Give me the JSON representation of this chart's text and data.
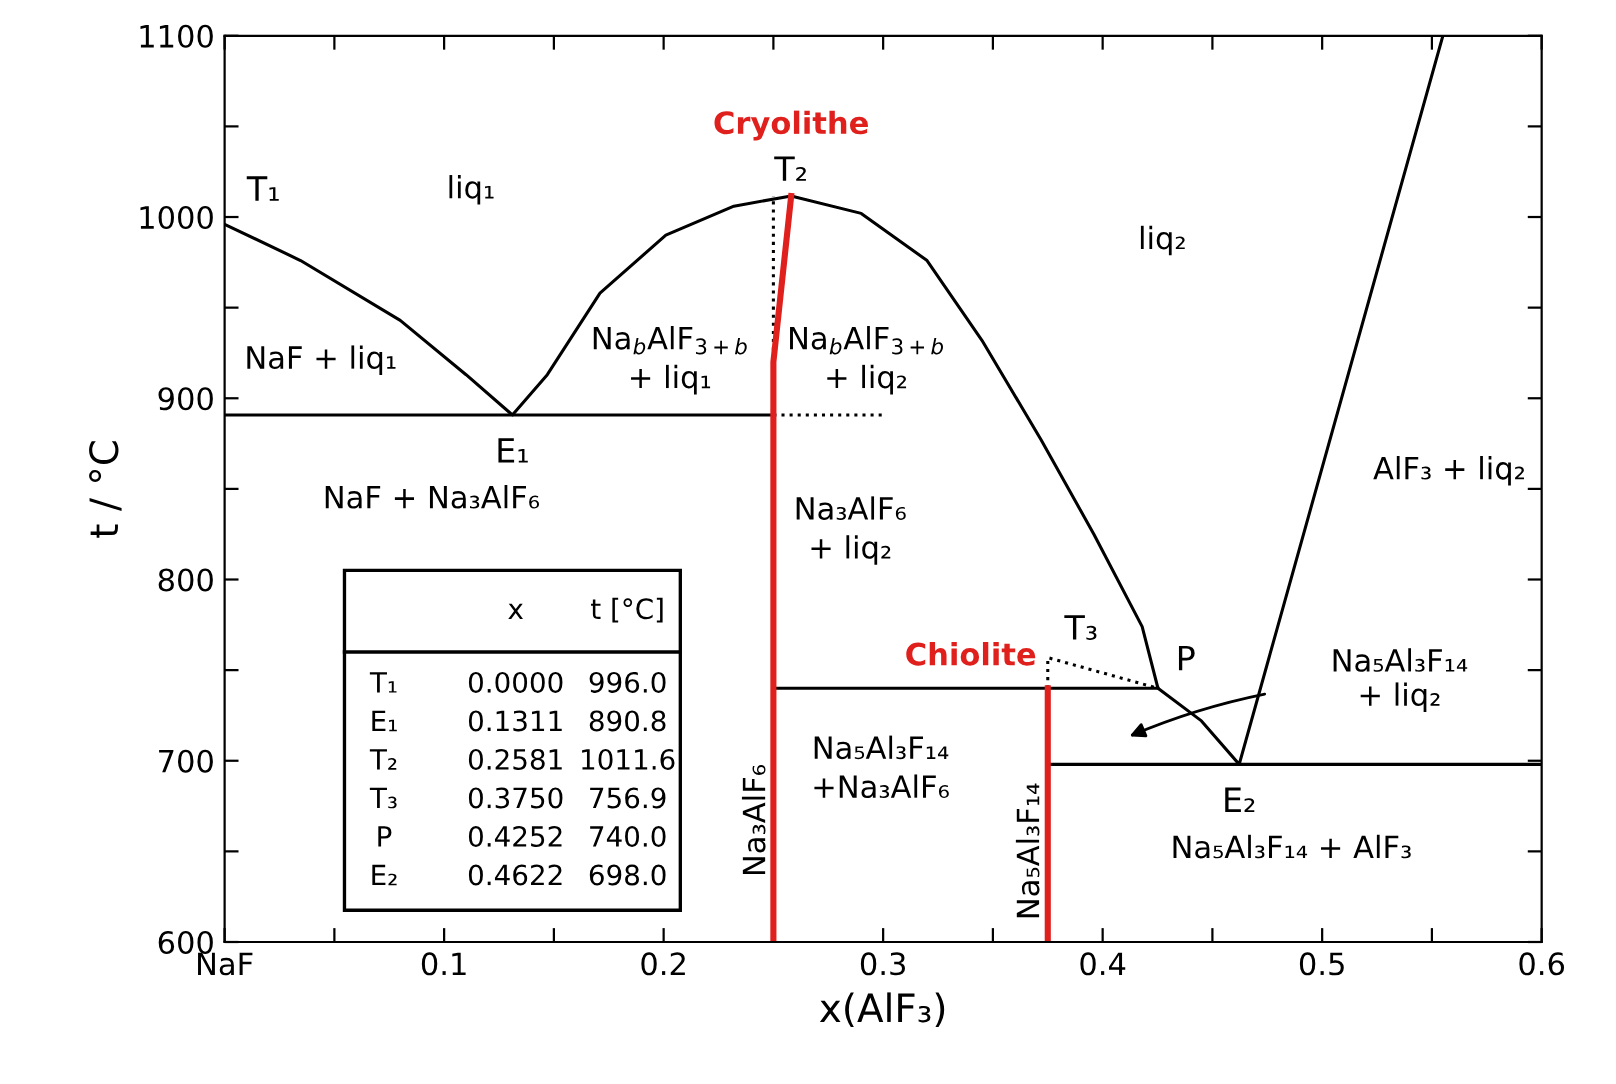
{
  "chart_data": {
    "type": "line",
    "xlabel": "x(AlF₃)",
    "ylabel": "t / °C",
    "xlim": [
      0,
      0.6
    ],
    "ylim": [
      600,
      1100
    ],
    "xticks": [
      {
        "value": 0,
        "label": "NaF"
      },
      {
        "value": 0.05,
        "label": null
      },
      0.1,
      {
        "value": 0.15,
        "label": null
      },
      0.2,
      {
        "value": 0.25,
        "label": null
      },
      0.3,
      {
        "value": 0.35,
        "label": null
      },
      0.4,
      {
        "value": 0.45,
        "label": null
      },
      0.5,
      {
        "value": 0.55,
        "label": null
      },
      0.6
    ],
    "yticks": [
      600,
      {
        "value": 650,
        "label": null
      },
      700,
      {
        "value": 750,
        "label": null
      },
      800,
      {
        "value": 850,
        "label": null
      },
      900,
      {
        "value": 950,
        "label": null
      },
      1000,
      {
        "value": 1050,
        "label": null
      },
      1100
    ],
    "grid": false,
    "series": [
      {
        "color": "#000000",
        "x": [
          0,
          0.0346,
          0.08,
          0.11,
          0.1311,
          0.147,
          0.171,
          0.201,
          0.232,
          0.2581,
          0.29,
          0.32,
          0.345,
          0.372,
          0.396,
          0.418,
          0.4252,
          0.445,
          0.4622,
          0.555
        ],
        "values": [
          996.0,
          976,
          943,
          913,
          890.8,
          913,
          958,
          990,
          1006,
          1011.6,
          1002,
          976,
          932,
          877,
          825,
          774,
          740.0,
          722,
          698.0,
          1100
        ]
      },
      {
        "color": "#000000",
        "x": [
          0,
          0.25
        ],
        "values": [
          890.8,
          890.8
        ]
      },
      {
        "color": "#000000",
        "x": [
          0.25,
          0.4252
        ],
        "values": [
          740.0,
          740.0
        ]
      },
      {
        "color": "#000000",
        "x": [
          0.375,
          0.6
        ],
        "values": [
          698.0,
          698.0
        ]
      },
      {
        "color": "#000000",
        "line_style": "dotted",
        "x": [
          0.25,
          0.3
        ],
        "values": [
          890.8,
          890.8
        ]
      },
      {
        "color": "#000000",
        "line_style": "dotted",
        "x": [
          0.25,
          0.25
        ],
        "values": [
          890.8,
          1011.6
        ]
      },
      {
        "color": "#000000",
        "line_style": "dotted",
        "x": [
          0.375,
          0.375,
          0.4252
        ],
        "values": [
          740.0,
          756.9,
          740.0
        ]
      },
      {
        "name": "Cryolithe",
        "color": "#e0201c",
        "x": [
          0.25,
          0.25,
          0.2581
        ],
        "values": [
          600,
          920,
          1011.6
        ]
      },
      {
        "name": "Chiolite",
        "color": "#e0201c",
        "x": [
          0.375,
          0.375
        ],
        "values": [
          600,
          740.0
        ]
      }
    ],
    "annotations": [
      {
        "text": "T₁",
        "x": 0.0,
        "y": 996.0
      },
      {
        "text": "E₁",
        "x": 0.1311,
        "y": 890.8
      },
      {
        "text": "T₂",
        "x": 0.2581,
        "y": 1011.6
      },
      {
        "text": "T₃",
        "x": 0.375,
        "y": 756.9
      },
      {
        "text": "P",
        "x": 0.4252,
        "y": 740.0
      },
      {
        "text": "E₂",
        "x": 0.4622,
        "y": 698.0
      },
      "Na₅Al₃F₁₄\n+ liq₂",
      "liq₁",
      "liq₂",
      "NaF + liq₁",
      "Na$_{b}$AlF$_{3+b}$\n+ liq₁",
      "Na$_{b}$AlF$_{3+b}$\n+ liq₂",
      "NaF + Na₃AlF₆",
      "Na₃AlF₆\n+ liq₂",
      "AlF₃ + liq₂",
      "Na₅Al₃F₁₄\n+Na₃AlF₆",
      "Na₅Al₃F₁₄ + AlF₃",
      "Na₃AlF₆",
      "Na₅Al₃F₁₄",
      "x",
      "t [°C]",
      "T₁",
      "0.0000",
      "996.0",
      "E₁",
      "0.1311",
      "890.8",
      "T₂",
      "0.2581",
      "1011.6",
      "T₃",
      "0.3750",
      "756.9",
      "P",
      "0.4252",
      "740.0",
      "E₂",
      "0.4622",
      "698.0"
    ]
  }
}
